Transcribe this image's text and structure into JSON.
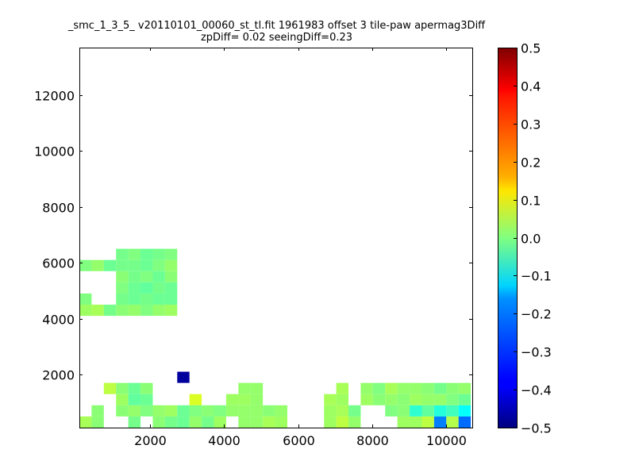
{
  "chart_data": [
    {
      "type": "heatmap",
      "title": "_smc_1_3_5_ v20110101_00060_st_tl.fit 1961983 offset 3 tile-paw apermag3Diff",
      "subtitle": "zpDiff= 0.02 seeingDiff=0.23",
      "xlabel": "",
      "ylabel": "",
      "xlim": [
        100,
        10700
      ],
      "ylim": [
        100,
        13700
      ],
      "x_ticks": [
        "2000",
        "4000",
        "6000",
        "8000",
        "10000"
      ],
      "x_tick_values": [
        2000,
        4000,
        6000,
        8000,
        10000
      ],
      "y_ticks": [
        "2000",
        "4000",
        "6000",
        "8000",
        "10000",
        "12000"
      ],
      "y_tick_values": [
        2000,
        4000,
        6000,
        8000,
        10000,
        12000
      ],
      "grid": false,
      "colormap": "jet",
      "vmin": -0.5,
      "vmax": 0.5,
      "colorbar_ticks": [
        "0.5",
        "0.4",
        "0.3",
        "0.2",
        "0.1",
        "0.0",
        "−0.1",
        "−0.2",
        "−0.3",
        "−0.4",
        "−0.5"
      ],
      "colorbar_tick_values": [
        0.5,
        0.4,
        0.3,
        0.2,
        0.1,
        0.0,
        -0.1,
        -0.2,
        -0.3,
        -0.4,
        -0.5
      ],
      "cell_width": 330,
      "cell_height": 400,
      "x0": 100,
      "y0": 100,
      "cells": [
        [
          0,
          0,
          0.04
        ],
        [
          0,
          1,
          null
        ],
        [
          1,
          0,
          0.01
        ],
        [
          1,
          1,
          0.01
        ],
        [
          2,
          1,
          null
        ],
        [
          3,
          0,
          null
        ],
        [
          3,
          1,
          0.01
        ],
        [
          4,
          0,
          -0.01
        ],
        [
          4,
          1,
          0.02
        ],
        [
          5,
          0,
          null
        ],
        [
          5,
          1,
          0.0
        ],
        [
          6,
          0,
          0.01
        ],
        [
          6,
          1,
          0.02
        ],
        [
          7,
          0,
          -0.01
        ],
        [
          7,
          1,
          0.03
        ],
        [
          8,
          0,
          -0.02
        ],
        [
          8,
          1,
          -0.02
        ],
        [
          9,
          0,
          0.02
        ],
        [
          9,
          1,
          0.0
        ],
        [
          10,
          0,
          -0.01
        ],
        [
          10,
          1,
          0.01
        ],
        [
          11,
          0,
          0.03
        ],
        [
          11,
          1,
          0.0
        ],
        [
          14,
          0,
          0.02
        ],
        [
          14,
          1,
          0.02
        ],
        [
          15,
          0,
          0.04
        ],
        [
          15,
          1,
          0.01
        ],
        [
          16,
          0,
          0.03
        ],
        [
          16,
          1,
          0.02
        ],
        [
          20,
          0,
          0.03
        ],
        [
          21,
          0,
          0.06
        ],
        [
          21,
          1,
          0.04
        ],
        [
          22,
          0,
          0.02
        ],
        [
          22,
          1,
          -0.01
        ],
        [
          26,
          0,
          0.03
        ],
        [
          26,
          1,
          0.01
        ],
        [
          27,
          0,
          0.03
        ],
        [
          27,
          1,
          -0.08
        ],
        [
          28,
          0,
          0.06
        ],
        [
          28,
          1,
          -0.03
        ],
        [
          29,
          0,
          -0.25
        ],
        [
          29,
          1,
          -0.09
        ],
        [
          30,
          0,
          0.05
        ],
        [
          30,
          1,
          -0.06
        ],
        [
          31,
          0,
          -0.27
        ],
        [
          31,
          1,
          -0.12
        ],
        [
          2,
          3,
          0.06
        ],
        [
          3,
          3,
          0.01
        ],
        [
          3,
          2,
          0.03
        ],
        [
          4,
          3,
          -0.02
        ],
        [
          4,
          2,
          -0.03
        ],
        [
          5,
          2,
          -0.02
        ],
        [
          5,
          3,
          0.01
        ],
        [
          9,
          2,
          0.09
        ],
        [
          9,
          1,
          0.0
        ],
        [
          12,
          0,
          null
        ],
        [
          12,
          1,
          0.02
        ],
        [
          12,
          2,
          0.03
        ],
        [
          13,
          0,
          0.02
        ],
        [
          13,
          1,
          0.02
        ],
        [
          13,
          2,
          0.03
        ],
        [
          13,
          3,
          0.02
        ],
        [
          14,
          2,
          0.02
        ],
        [
          14,
          3,
          0.02
        ],
        [
          8,
          4,
          -0.47
        ],
        [
          8,
          3,
          null
        ],
        [
          20,
          1,
          0.03
        ],
        [
          20,
          2,
          0.04
        ],
        [
          21,
          2,
          0.03
        ],
        [
          21,
          3,
          0.04
        ],
        [
          23,
          2,
          0.03
        ],
        [
          23,
          3,
          0.02
        ],
        [
          23,
          1,
          null
        ],
        [
          24,
          3,
          0.0
        ],
        [
          24,
          2,
          0.01
        ],
        [
          24,
          1,
          null
        ],
        [
          25,
          3,
          0.04
        ],
        [
          25,
          2,
          0.02
        ],
        [
          25,
          1,
          0.0
        ],
        [
          26,
          3,
          0.02
        ],
        [
          26,
          2,
          0.01
        ],
        [
          27,
          3,
          0.02
        ],
        [
          27,
          2,
          0.03
        ],
        [
          28,
          3,
          0.01
        ],
        [
          28,
          2,
          0.02
        ],
        [
          29,
          3,
          -0.01
        ],
        [
          29,
          2,
          0.02
        ],
        [
          30,
          3,
          0.01
        ],
        [
          30,
          2,
          0.0
        ],
        [
          31,
          3,
          0.02
        ],
        [
          31,
          2,
          -0.02
        ],
        [
          0,
          10,
          0.03
        ],
        [
          1,
          10,
          0.04
        ],
        [
          2,
          10,
          -0.01
        ],
        [
          3,
          10,
          0.01
        ],
        [
          4,
          10,
          0.02
        ],
        [
          5,
          10,
          0.0
        ],
        [
          6,
          10,
          0.02
        ],
        [
          7,
          10,
          0.03
        ],
        [
          0,
          11,
          0.0
        ],
        [
          1,
          11,
          null
        ],
        [
          2,
          11,
          null
        ],
        [
          3,
          11,
          -0.01
        ],
        [
          4,
          11,
          -0.02
        ],
        [
          5,
          11,
          -0.01
        ],
        [
          6,
          11,
          -0.02
        ],
        [
          7,
          11,
          -0.02
        ],
        [
          1,
          12,
          null
        ],
        [
          2,
          12,
          null
        ],
        [
          3,
          12,
          0.0
        ],
        [
          4,
          12,
          -0.02
        ],
        [
          5,
          12,
          -0.03
        ],
        [
          6,
          12,
          -0.01
        ],
        [
          7,
          12,
          -0.02
        ],
        [
          3,
          13,
          0.01
        ],
        [
          4,
          13,
          -0.01
        ],
        [
          5,
          13,
          0.0
        ],
        [
          6,
          13,
          -0.02
        ],
        [
          7,
          13,
          0.01
        ],
        [
          0,
          14,
          0.0
        ],
        [
          1,
          14,
          0.02
        ],
        [
          2,
          14,
          -0.02
        ],
        [
          3,
          14,
          -0.01
        ],
        [
          4,
          14,
          -0.01
        ],
        [
          5,
          14,
          -0.02
        ],
        [
          6,
          14,
          0.0
        ],
        [
          7,
          14,
          0.02
        ],
        [
          3,
          15,
          -0.01
        ],
        [
          4,
          15,
          0.0
        ],
        [
          5,
          15,
          -0.02
        ],
        [
          6,
          15,
          -0.01
        ],
        [
          7,
          15,
          0.0
        ]
      ]
    }
  ]
}
